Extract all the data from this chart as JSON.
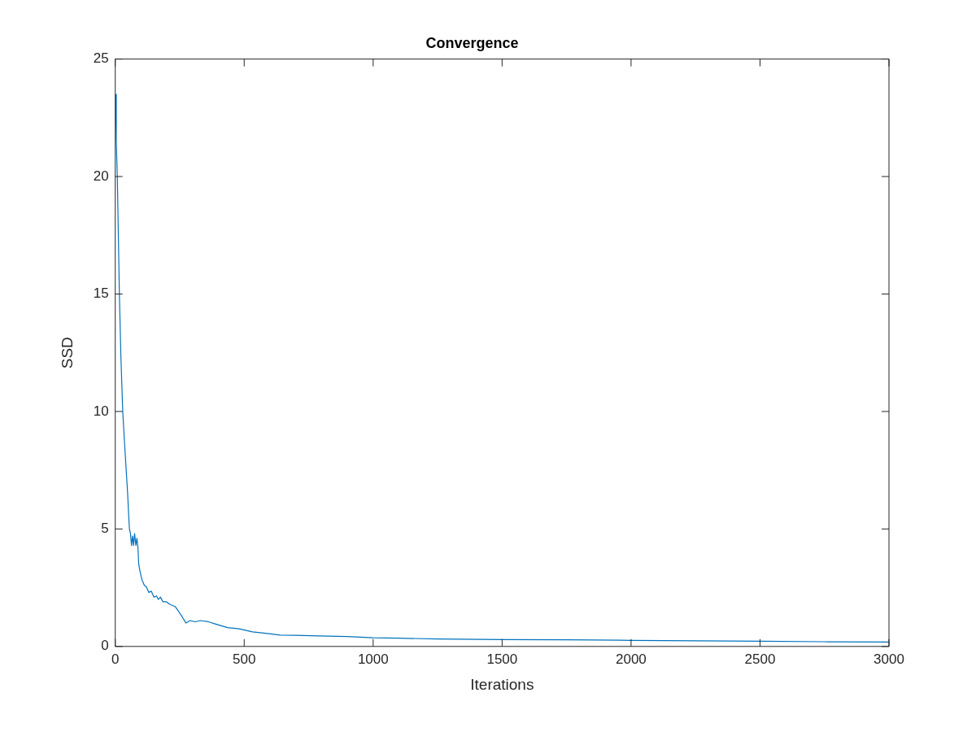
{
  "chart_data": {
    "type": "line",
    "title": "Convergence",
    "xlabel": "Iterations",
    "ylabel": "SSD",
    "series": [
      {
        "color": "#0072bd",
        "x": [
          1,
          4,
          8,
          12,
          16,
          22,
          29,
          38,
          48,
          52,
          55,
          59,
          63,
          67,
          71,
          75,
          80,
          84,
          88,
          91,
          96,
          100,
          105,
          113,
          120,
          130,
          140,
          150,
          160,
          167,
          175,
          185,
          199,
          210,
          220,
          232,
          245,
          260,
          274,
          290,
          310,
          330,
          361,
          390,
          435,
          480,
          532,
          590,
          640,
          700,
          790,
          900,
          1000,
          1100,
          1250,
          1500,
          1750,
          2000,
          2250,
          2500,
          2750,
          3000
        ],
        "values": [
          23.5,
          21.5,
          20,
          17.5,
          15,
          12.3,
          10,
          8.3,
          6.5,
          5.6,
          5.0,
          4.8,
          4.3,
          4.7,
          4.3,
          4.8,
          4.3,
          4.6,
          4.2,
          3.5,
          3.2,
          3.0,
          2.8,
          2.6,
          2.55,
          2.3,
          2.35,
          2.1,
          2.15,
          2.0,
          2.1,
          1.9,
          1.9,
          1.8,
          1.75,
          1.7,
          1.5,
          1.25,
          1.0,
          1.1,
          1.05,
          1.1,
          1.05,
          0.95,
          0.8,
          0.75,
          0.62,
          0.55,
          0.48,
          0.47,
          0.45,
          0.42,
          0.37,
          0.35,
          0.32,
          0.29,
          0.28,
          0.26,
          0.24,
          0.22,
          0.2,
          0.19
        ]
      }
    ],
    "xlim": [
      0,
      3000
    ],
    "xticks": [
      0,
      500,
      1000,
      1500,
      2000,
      2500,
      3000
    ],
    "ylim": [
      0,
      25
    ],
    "yticks": [
      0,
      5,
      10,
      15,
      20,
      25
    ],
    "grid": false,
    "legend": false,
    "marker": "none",
    "line_style": "solid"
  }
}
